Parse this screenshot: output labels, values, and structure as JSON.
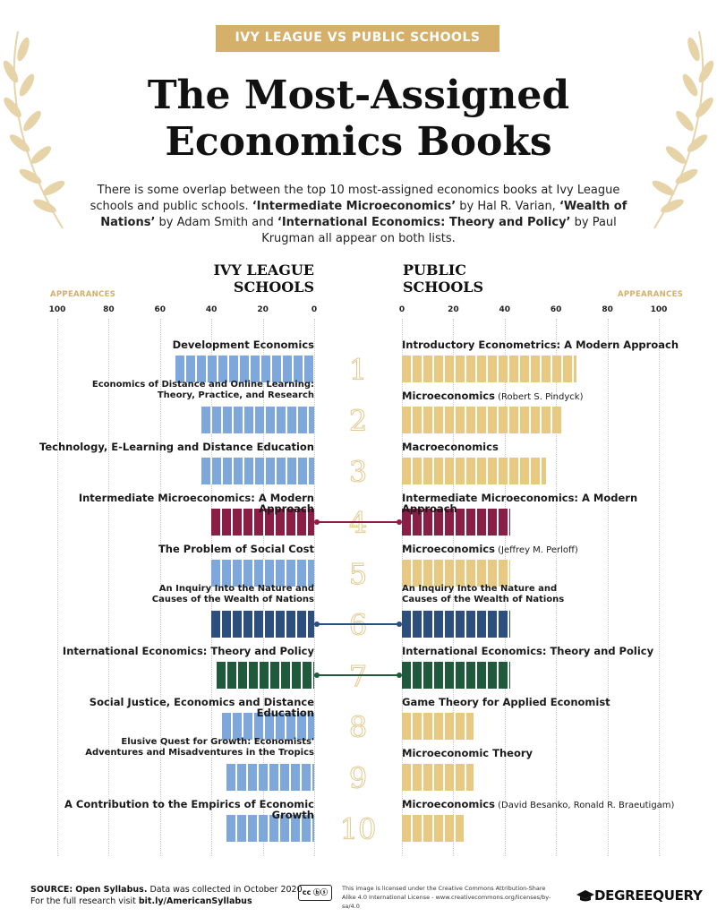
{
  "header": {
    "banner": "IVY LEAGUE VS PUBLIC SCHOOLS",
    "title_line1": "The Most-Assigned",
    "title_line2": "Economics Books",
    "intro_parts": [
      {
        "text": "There is some overlap between the top 10 most-assigned economics books at Ivy League schools and public schools. ",
        "bold": false
      },
      {
        "text": "‘Intermediate Microeconomics’",
        "bold": true
      },
      {
        "text": " by Hal R. Varian, ",
        "bold": false
      },
      {
        "text": "‘Wealth of Nations’",
        "bold": true
      },
      {
        "text": " by Adam Smith and ",
        "bold": false
      },
      {
        "text": "‘International Economics: Theory and Policy’",
        "bold": true
      },
      {
        "text": " by Paul Krugman all appear on both lists.",
        "bold": false
      }
    ]
  },
  "chart_data": {
    "type": "bar",
    "title": "The Most-Assigned Economics Books",
    "left_header_line1": "IVY LEAGUE",
    "left_header_line2": "SCHOOLS",
    "right_header_line1": "PUBLIC",
    "right_header_line2": "SCHOOLS",
    "axis_label": "APPEARANCES",
    "ticks": [
      100,
      80,
      60,
      40,
      20,
      0
    ],
    "right_ticks": [
      0,
      20,
      40,
      60,
      80,
      100
    ],
    "xlim": [
      0,
      100
    ],
    "colors": {
      "ivy": "#7ea7dc",
      "public": "#e8c982",
      "shared_intermediate": "#8b1e45",
      "shared_wealth": "#2d4f7e",
      "shared_international": "#1f5a3c",
      "rank_outline": "#e3c98f",
      "accent": "#d4b06a"
    },
    "ranks": [
      "1",
      "2",
      "3",
      "4",
      "5",
      "6",
      "7",
      "8",
      "9",
      "10"
    ],
    "ivy": [
      {
        "title_lines": [
          "Development Economics"
        ],
        "value": 54,
        "shared": null
      },
      {
        "title_lines": [
          "Economics of Distance and Online Learning:",
          "Theory, Practice, and Research"
        ],
        "value": 44,
        "shared": null
      },
      {
        "title_lines": [
          "Technology, E-Learning and Distance Education"
        ],
        "value": 44,
        "shared": null
      },
      {
        "title_lines": [
          "Intermediate Microeconomics: A Modern Approach"
        ],
        "value": 40,
        "shared": "shared_intermediate"
      },
      {
        "title_lines": [
          "The Problem of Social Cost"
        ],
        "value": 40,
        "shared": null
      },
      {
        "title_lines": [
          "An Inquiry Into the Nature and",
          "Causes of the Wealth of Nations"
        ],
        "value": 40,
        "shared": "shared_wealth"
      },
      {
        "title_lines": [
          "International Economics: Theory and Policy"
        ],
        "value": 38,
        "shared": "shared_international"
      },
      {
        "title_lines": [
          "Social Justice, Economics and Distance Education"
        ],
        "value": 36,
        "shared": null
      },
      {
        "title_lines": [
          "Elusive Quest for Growth: Economists'",
          "Adventures and Misadventures in the Tropics"
        ],
        "value": 34,
        "shared": null
      },
      {
        "title_lines": [
          "A Contribution to the Empirics of Economic Growth"
        ],
        "value": 34,
        "shared": null
      }
    ],
    "public": [
      {
        "title": "Introductory Econometrics: A Modern Approach",
        "author": "",
        "value": 68,
        "shared": null
      },
      {
        "title": "Microeconomics",
        "author": "(Robert S. Pindyck)",
        "value": 62,
        "shared": null
      },
      {
        "title": "Macroeconomics",
        "author": "",
        "value": 56,
        "shared": null
      },
      {
        "title": "Intermediate Microeconomics: A Modern Approach",
        "author": "",
        "value": 42,
        "shared": "shared_intermediate"
      },
      {
        "title": "Microeconomics",
        "author": "(Jeffrey M. Perloff)",
        "value": 42,
        "shared": null
      },
      {
        "title_lines": [
          "An Inquiry Into the Nature and",
          "Causes of the Wealth of Nations"
        ],
        "value": 42,
        "shared": "shared_wealth"
      },
      {
        "title": "International Economics: Theory and Policy",
        "author": "",
        "value": 42,
        "shared": "shared_international"
      },
      {
        "title": "Game Theory for Applied Economist",
        "author": "",
        "value": 28,
        "shared": null
      },
      {
        "title": "Microeconomic Theory",
        "author": "",
        "value": 28,
        "shared": null
      },
      {
        "title": "Microeconomics",
        "author": "(David Besanko, Ronald R. Braeutigam)",
        "value": 24,
        "shared": null
      }
    ]
  },
  "footer": {
    "source_label": "SOURCE:",
    "source_name": "Open Syllabus.",
    "source_note": " Data was collected in October 2020.",
    "research_prefix": "For the full research visit ",
    "research_link": "bit.ly/AmericanSyllabus",
    "cc_badge": "cc ⓑⓢ",
    "license_text": "This image is licensed under the Creative Commons Attribution-Share Alike 4.0 International License - www.creativecommons.org/licenses/by-sa/4.0",
    "brand": "DEGREEQUERY"
  }
}
